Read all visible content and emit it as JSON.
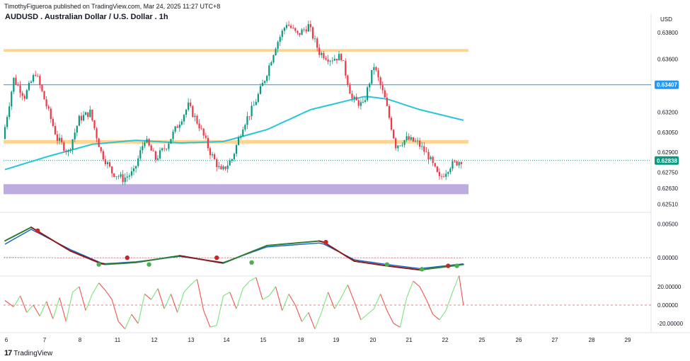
{
  "header": {
    "attribution": "TimothyFigueroa published on TradingView.com, Mar 24, 2025 11:27 UTC+8",
    "title": "AUDUSD . Australian Dollar / U.S. Dollar . 1h",
    "currency": "USD"
  },
  "footer": {
    "brand": "TradingView",
    "logo": "17"
  },
  "colors": {
    "up": "#089981",
    "down": "#f23645",
    "ma": "#26c6da",
    "zone_orange": "#ffcc80",
    "zone_purple": "#b39ddb",
    "hline": "#2196f3",
    "price": "#089981",
    "macd_fast": "#2e7d32",
    "macd_slow": "#1565c0",
    "macd_dark": "#8b1a1a",
    "osc_up": "#7be37b",
    "osc_down": "#ef5350"
  },
  "chart_data": [
    {
      "type": "candlestick",
      "x_ticks": [
        "6",
        "7",
        "8",
        "11",
        "12",
        "13",
        "14",
        "15",
        "18",
        "19",
        "20",
        "21",
        "22",
        "25",
        "26",
        "27",
        "28",
        "29"
      ],
      "y_ticks": [
        "0.63800",
        "0.63600",
        "0.63200",
        "0.63050",
        "0.62900",
        "0.62750",
        "0.62630",
        "0.62510"
      ],
      "ylim": [
        0.6247,
        0.6399
      ],
      "price_line": {
        "value": 0.62838,
        "label": "0.62838"
      },
      "horizontal_line": {
        "value": 0.63407,
        "label": "0.63407"
      },
      "zones": [
        {
          "name": "resistance",
          "from": 0.63655,
          "to": 0.63675
        },
        {
          "name": "mid",
          "from": 0.62965,
          "to": 0.62992
        },
        {
          "name": "support",
          "from": 0.62585,
          "to": 0.6266
        }
      ],
      "anchors": [
        [
          0,
          0.63
        ],
        [
          5,
          0.6345
        ],
        [
          10,
          0.6332
        ],
        [
          15,
          0.635
        ],
        [
          20,
          0.6325
        ],
        [
          25,
          0.63
        ],
        [
          30,
          0.629
        ],
        [
          35,
          0.6315
        ],
        [
          40,
          0.632
        ],
        [
          45,
          0.629
        ],
        [
          50,
          0.6275
        ],
        [
          55,
          0.627
        ],
        [
          60,
          0.6275
        ],
        [
          65,
          0.63
        ],
        [
          70,
          0.6285
        ],
        [
          75,
          0.6295
        ],
        [
          80,
          0.631
        ],
        [
          85,
          0.6325
        ],
        [
          90,
          0.631
        ],
        [
          95,
          0.629
        ],
        [
          100,
          0.6275
        ],
        [
          105,
          0.6285
        ],
        [
          110,
          0.631
        ],
        [
          115,
          0.6325
        ],
        [
          120,
          0.6345
        ],
        [
          125,
          0.637
        ],
        [
          130,
          0.6387
        ],
        [
          135,
          0.6378
        ],
        [
          140,
          0.6385
        ],
        [
          145,
          0.6365
        ],
        [
          150,
          0.636
        ],
        [
          155,
          0.6362
        ],
        [
          160,
          0.633
        ],
        [
          165,
          0.6325
        ],
        [
          170,
          0.6355
        ],
        [
          175,
          0.633
        ],
        [
          180,
          0.6295
        ],
        [
          185,
          0.63
        ],
        [
          190,
          0.6297
        ],
        [
          195,
          0.6287
        ],
        [
          200,
          0.627
        ],
        [
          205,
          0.628
        ],
        [
          210,
          0.6284
        ]
      ],
      "ma_points": [
        [
          0,
          0.6277
        ],
        [
          20,
          0.6287
        ],
        [
          40,
          0.6296
        ],
        [
          60,
          0.6299
        ],
        [
          80,
          0.6297
        ],
        [
          100,
          0.6298
        ],
        [
          120,
          0.6307
        ],
        [
          140,
          0.6322
        ],
        [
          160,
          0.633
        ],
        [
          165,
          0.6332
        ],
        [
          175,
          0.633
        ],
        [
          190,
          0.6322
        ],
        [
          210,
          0.6314
        ]
      ]
    },
    {
      "type": "line",
      "name": "macd",
      "y_ticks": [
        "0.00500",
        "0.00000"
      ],
      "ylim": [
        -0.0025,
        0.0065
      ],
      "fast": [
        [
          0,
          0.0025
        ],
        [
          12,
          0.0045
        ],
        [
          30,
          0.001
        ],
        [
          45,
          -0.001
        ],
        [
          60,
          -0.0007
        ],
        [
          80,
          0.0003
        ],
        [
          100,
          -0.0008
        ],
        [
          120,
          0.0018
        ],
        [
          145,
          0.0025
        ],
        [
          160,
          -0.0005
        ],
        [
          175,
          -0.0012
        ],
        [
          190,
          -0.0018
        ],
        [
          210,
          -0.001
        ]
      ],
      "slow": [
        [
          0,
          0.002
        ],
        [
          12,
          0.0042
        ],
        [
          30,
          0.0012
        ],
        [
          45,
          -0.0009
        ],
        [
          60,
          -0.0006
        ],
        [
          80,
          0.0002
        ],
        [
          100,
          -0.0007
        ],
        [
          120,
          0.0016
        ],
        [
          145,
          0.0022
        ],
        [
          160,
          -0.0003
        ],
        [
          175,
          -0.001
        ],
        [
          190,
          -0.0016
        ],
        [
          210,
          -0.0009
        ]
      ],
      "dots": [
        [
          15,
          0.004,
          "down"
        ],
        [
          43,
          -0.001,
          "up"
        ],
        [
          56,
          0.0,
          "down"
        ],
        [
          66,
          -0.001,
          "up"
        ],
        [
          97,
          0.0,
          "down"
        ],
        [
          113,
          -0.0007,
          "up"
        ],
        [
          147,
          0.0023,
          "down"
        ],
        [
          175,
          -0.001,
          "up"
        ],
        [
          191,
          -0.0017,
          "up"
        ],
        [
          203,
          -0.0012,
          "down"
        ],
        [
          207,
          -0.0012,
          "up"
        ]
      ]
    },
    {
      "type": "line",
      "name": "oscillator",
      "y_ticks": [
        "20.00000",
        "0.00000",
        "-20.00000"
      ],
      "ylim": [
        -30,
        30
      ],
      "values": [
        [
          0,
          5
        ],
        [
          4,
          -2
        ],
        [
          7,
          10
        ],
        [
          10,
          -8
        ],
        [
          13,
          0
        ],
        [
          16,
          -12
        ],
        [
          19,
          4
        ],
        [
          22,
          -15
        ],
        [
          25,
          8
        ],
        [
          28,
          -18
        ],
        [
          31,
          14
        ],
        [
          34,
          20
        ],
        [
          37,
          -6
        ],
        [
          40,
          12
        ],
        [
          43,
          24
        ],
        [
          46,
          16
        ],
        [
          49,
          6
        ],
        [
          52,
          -18
        ],
        [
          55,
          -26
        ],
        [
          58,
          -10
        ],
        [
          61,
          -20
        ],
        [
          64,
          12
        ],
        [
          67,
          6
        ],
        [
          70,
          18
        ],
        [
          73,
          -4
        ],
        [
          76,
          12
        ],
        [
          79,
          -8
        ],
        [
          82,
          14
        ],
        [
          85,
          22
        ],
        [
          88,
          28
        ],
        [
          91,
          -6
        ],
        [
          94,
          -24
        ],
        [
          97,
          -22
        ],
        [
          100,
          10
        ],
        [
          103,
          14
        ],
        [
          106,
          -4
        ],
        [
          109,
          18
        ],
        [
          112,
          26
        ],
        [
          115,
          30
        ],
        [
          118,
          6
        ],
        [
          121,
          10
        ],
        [
          124,
          20
        ],
        [
          127,
          -6
        ],
        [
          130,
          12
        ],
        [
          133,
          0
        ],
        [
          136,
          -18
        ],
        [
          139,
          -8
        ],
        [
          142,
          -26
        ],
        [
          145,
          -8
        ],
        [
          148,
          14
        ],
        [
          151,
          -4
        ],
        [
          154,
          8
        ],
        [
          157,
          22
        ],
        [
          160,
          4
        ],
        [
          163,
          -16
        ],
        [
          166,
          -10
        ],
        [
          169,
          -4
        ],
        [
          172,
          12
        ],
        [
          175,
          -6
        ],
        [
          178,
          -20
        ],
        [
          181,
          -24
        ],
        [
          184,
          8
        ],
        [
          187,
          26
        ],
        [
          190,
          20
        ],
        [
          193,
          6
        ],
        [
          196,
          -10
        ],
        [
          199,
          -16
        ],
        [
          202,
          -6
        ],
        [
          205,
          14
        ],
        [
          208,
          32
        ],
        [
          210,
          0
        ]
      ]
    }
  ]
}
